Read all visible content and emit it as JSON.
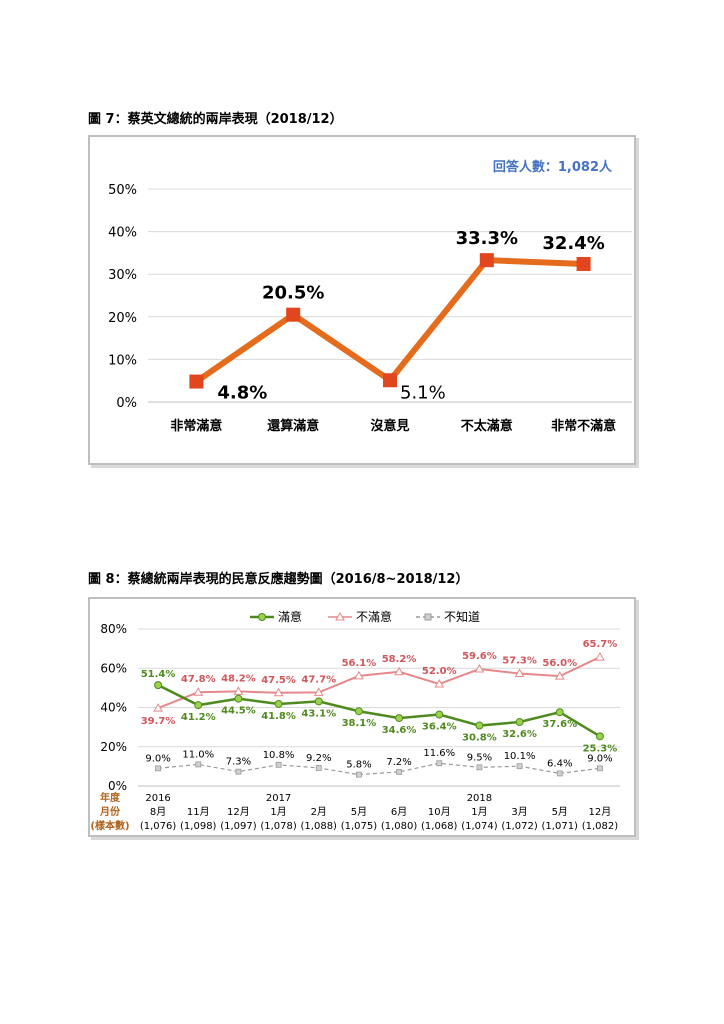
{
  "fig7": {
    "title": "圖 7：蔡英文總統的兩岸表現（2018/12）",
    "sample_note": "回答人數：1,082人"
  },
  "fig8": {
    "title": "圖 8：蔡總統兩岸表現的民意反應趨勢圖（2016/8~2018/12）",
    "row_labels": [
      "年度",
      "月份",
      "(樣本數)"
    ]
  },
  "colors": {
    "fig7_line": "#e46c1c",
    "fig7_marker": "#e2461f",
    "satisfied": "#4f8a1e",
    "satisfied_marker": "#9ad24b",
    "dissatisfied": "#e5888a",
    "unknown": "#9a9a9a",
    "note_blue": "#4472c4",
    "row_label_brown": "#b3631b"
  },
  "chart_data": [
    {
      "type": "line",
      "categories": [
        "非常滿意",
        "還算滿意",
        "沒意見",
        "不太滿意",
        "非常不滿意"
      ],
      "values": [
        4.8,
        20.5,
        5.1,
        33.3,
        32.4
      ],
      "value_labels": [
        "4.8%",
        "20.5%",
        "5.1%",
        "33.3%",
        "32.4%"
      ],
      "ylim": [
        0,
        50
      ],
      "yticks": [
        "0%",
        "10%",
        "20%",
        "30%",
        "40%",
        "50%"
      ],
      "grid": true,
      "legend": "none"
    },
    {
      "type": "line",
      "categories": [
        "8月",
        "11月",
        "12月",
        "1月",
        "2月",
        "5月",
        "6月",
        "10月",
        "1月",
        "3月",
        "5月",
        "12月"
      ],
      "years": [
        "2016",
        "",
        "",
        "2017",
        "",
        "",
        "",
        "",
        "2018",
        "",
        "",
        ""
      ],
      "sample_sizes": [
        "(1,076)",
        "(1,098)",
        "(1,097)",
        "(1,078)",
        "(1,088)",
        "(1,075)",
        "(1,080)",
        "(1,068)",
        "(1,074)",
        "(1,072)",
        "(1,071)",
        "(1,082)"
      ],
      "ylim": [
        0,
        80
      ],
      "yticks": [
        "0%",
        "20%",
        "40%",
        "60%",
        "80%"
      ],
      "grid": true,
      "legend": "top-center",
      "series": [
        {
          "name": "滿意",
          "values": [
            51.4,
            41.2,
            44.5,
            41.8,
            43.1,
            38.1,
            34.6,
            36.4,
            30.8,
            32.6,
            37.6,
            25.3
          ],
          "labels": [
            "51.4%",
            "41.2%",
            "44.5%",
            "41.8%",
            "43.1%",
            "38.1%",
            "34.6%",
            "36.4%",
            "30.8%",
            "32.6%",
            "37.6%",
            "25.3%"
          ]
        },
        {
          "name": "不滿意",
          "values": [
            39.7,
            47.8,
            48.2,
            47.5,
            47.7,
            56.1,
            58.2,
            52.0,
            59.6,
            57.3,
            56.0,
            65.7
          ],
          "labels": [
            "39.7%",
            "47.8%",
            "48.2%",
            "47.5%",
            "47.7%",
            "56.1%",
            "58.2%",
            "52.0%",
            "59.6%",
            "57.3%",
            "56.0%",
            "65.7%"
          ]
        },
        {
          "name": "不知道",
          "values": [
            9.0,
            11.0,
            7.3,
            10.8,
            9.2,
            5.8,
            7.2,
            11.6,
            9.5,
            10.1,
            6.4,
            9.0
          ],
          "labels": [
            "9.0%",
            "11.0%",
            "7.3%",
            "10.8%",
            "9.2%",
            "5.8%",
            "7.2%",
            "11.6%",
            "9.5%",
            "10.1%",
            "6.4%",
            "9.0%"
          ]
        }
      ]
    }
  ]
}
